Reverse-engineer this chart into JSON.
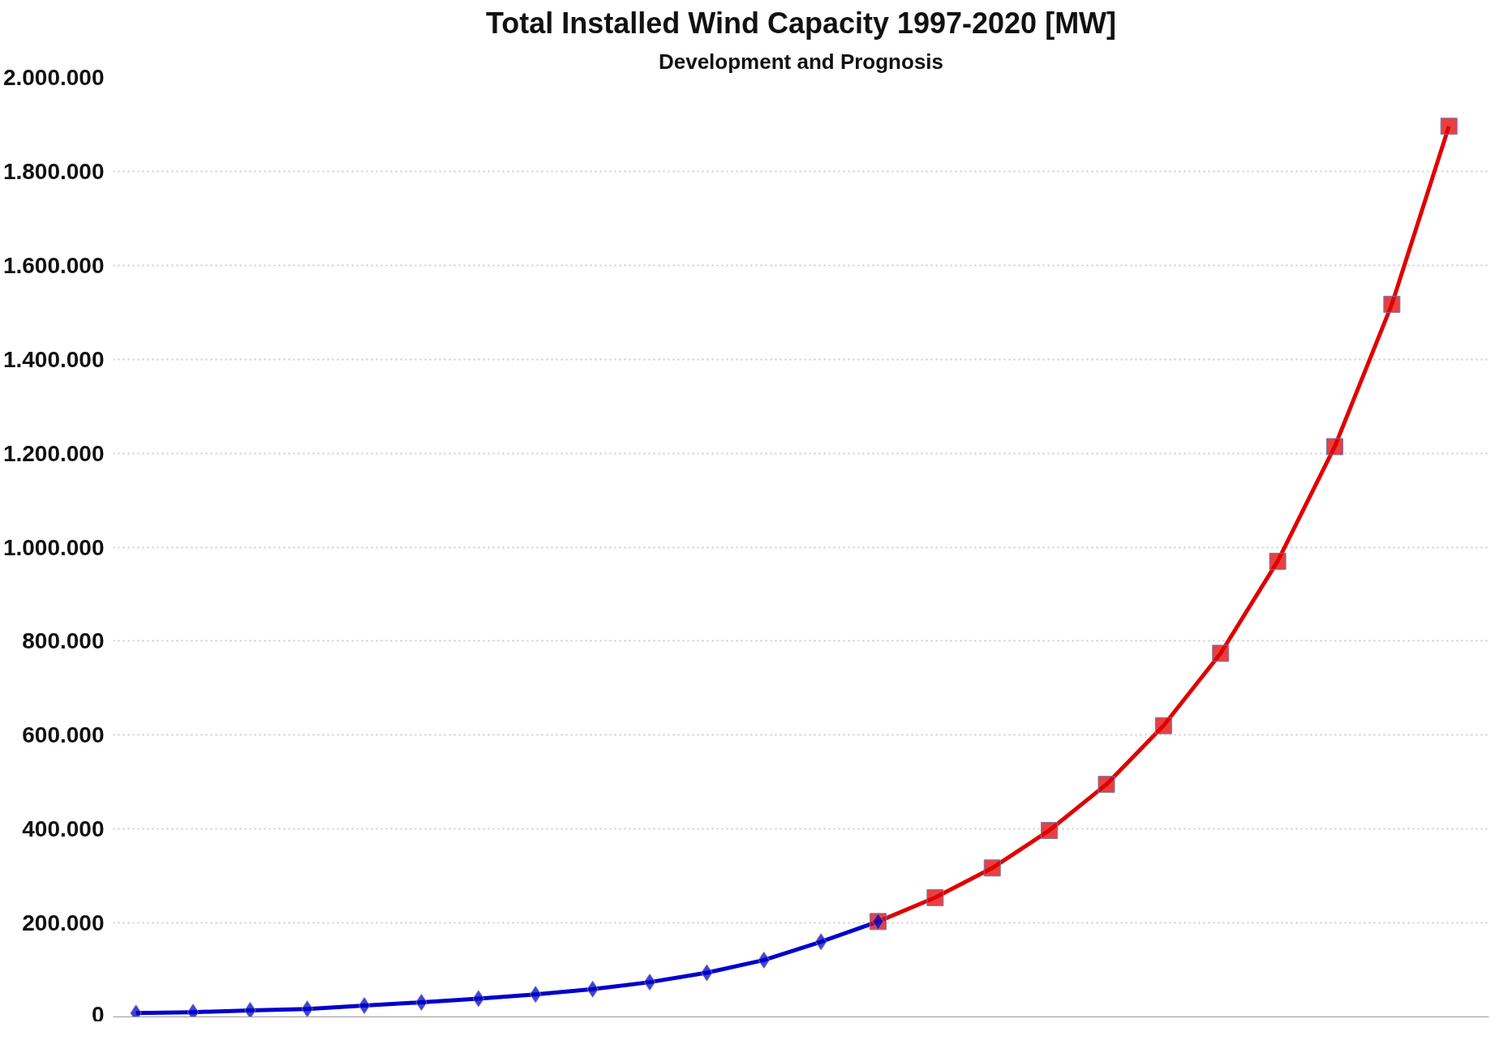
{
  "chart_data": {
    "type": "line",
    "title": "Total Installed Wind Capacity 1997-2020 [MW]",
    "subtitle": "Development and Prognosis",
    "categories": [
      null,
      null,
      null,
      null,
      null,
      null,
      null,
      null,
      null,
      null,
      null,
      null,
      null,
      null,
      null,
      null,
      null,
      null,
      null,
      null,
      null,
      null,
      null,
      null
    ],
    "series": [
      {
        "color": "#0000cc",
        "marker": "diamond",
        "values": [
          8000,
          10000,
          14000,
          17000,
          24000,
          31000,
          39000,
          48000,
          59000,
          74000,
          94000,
          121000,
          160000,
          203000,
          null,
          null,
          null,
          null,
          null,
          null,
          null,
          null,
          null,
          null
        ]
      },
      {
        "color": "#e00000",
        "marker": "square",
        "values": [
          null,
          null,
          null,
          null,
          null,
          null,
          null,
          null,
          null,
          null,
          null,
          null,
          null,
          203000,
          254000,
          317000,
          397000,
          495000,
          620000,
          774000,
          970000,
          1214000,
          1517000,
          1896000
        ]
      }
    ],
    "ylim": [
      0,
      2000000
    ],
    "yticks": [
      0,
      {
        "value": 200000,
        "label": "200.000"
      },
      {
        "value": 400000,
        "label": "400.000"
      },
      {
        "value": 600000,
        "label": "600.000"
      },
      {
        "value": 800000,
        "label": "800.000"
      },
      {
        "value": 1000000,
        "label": "1.000.000"
      },
      {
        "value": 1200000,
        "label": "1.200.000"
      },
      {
        "value": 1400000,
        "label": "1.400.000"
      },
      {
        "value": 1600000,
        "label": "1.600.000"
      },
      {
        "value": 1800000,
        "label": "1.800.000"
      },
      {
        "value": 2000000,
        "label": "2.000.000"
      }
    ],
    "tick_labels": "y",
    "grid": "y",
    "line_style": "solid"
  }
}
